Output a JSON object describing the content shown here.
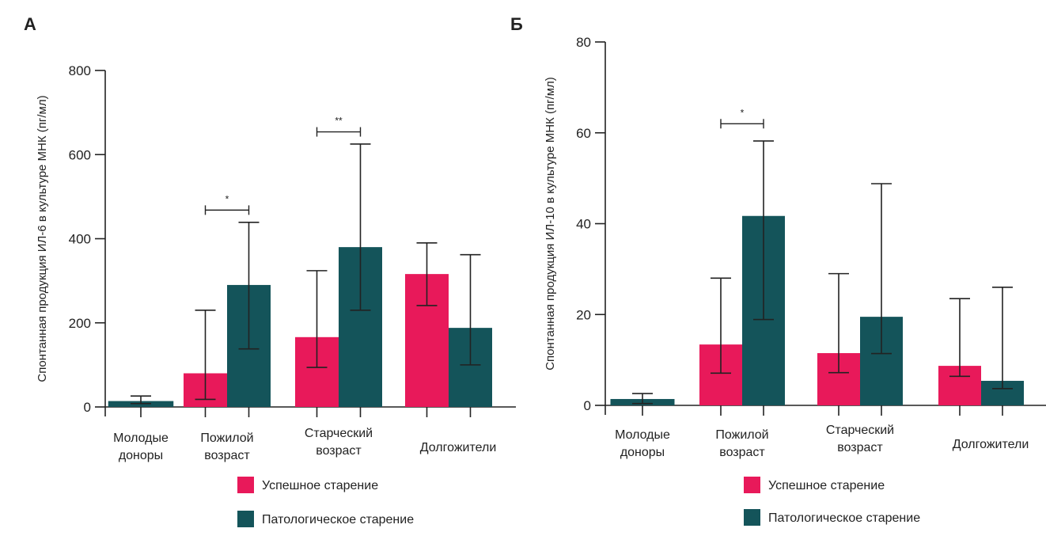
{
  "colors": {
    "successful": "#E8195A",
    "pathological": "#14545A",
    "axis": "#222222"
  },
  "legend": {
    "items": [
      {
        "label": "Успешное старение",
        "color": "#E8195A"
      },
      {
        "label": "Патологическое старение",
        "color": "#14545A"
      }
    ]
  },
  "chart_data": [
    {
      "type": "bar",
      "panel": "А",
      "title": "",
      "xlabel": "",
      "ylabel": "Спонтанная продукция ИЛ-6 в культуре МНК (пг/мл)",
      "ylim": [
        0,
        800
      ],
      "yticks": [
        0,
        200,
        400,
        600,
        800
      ],
      "categories": [
        [
          "Молодые",
          "доноры"
        ],
        [
          "Пожилой",
          "возраст"
        ],
        [
          "Старческий",
          "возраст"
        ],
        [
          "Долгожители"
        ]
      ],
      "series": [
        {
          "name": "Успешное старение",
          "values": [
            null,
            80,
            166,
            316
          ],
          "err_low": [
            null,
            18,
            94,
            241
          ],
          "err_high": [
            null,
            230,
            324,
            390
          ]
        },
        {
          "name": "Патологическое старение",
          "values": [
            14,
            290,
            380,
            188
          ],
          "err_low": [
            8,
            138,
            230,
            100
          ],
          "err_high": [
            26,
            439,
            625,
            362
          ]
        }
      ],
      "single_bar_group": 0,
      "significance": [
        {
          "group": 1,
          "label": "*",
          "y": 468
        },
        {
          "group": 2,
          "label": "**",
          "y": 654
        }
      ],
      "legend_position": "bottom"
    },
    {
      "type": "bar",
      "panel": "Б",
      "title": "",
      "xlabel": "",
      "ylabel": "Спонтанная продукция ИЛ-10 в культуре МНК (пг/мл)",
      "ylim": [
        0,
        80
      ],
      "yticks": [
        0,
        20,
        40,
        60,
        80
      ],
      "categories": [
        [
          "Молодые",
          "доноры"
        ],
        [
          "Пожилой",
          "возраст"
        ],
        [
          "Старческий",
          "возраст"
        ],
        [
          "Долгожители"
        ]
      ],
      "series": [
        {
          "name": "Успешное старение",
          "values": [
            null,
            13.4,
            11.5,
            8.7
          ],
          "err_low": [
            null,
            7.1,
            7.2,
            6.4
          ],
          "err_high": [
            null,
            28,
            29,
            23.5
          ]
        },
        {
          "name": "Патологическое старение",
          "values": [
            1.4,
            41.7,
            19.5,
            5.4
          ],
          "err_low": [
            0.4,
            18.9,
            11.4,
            3.7
          ],
          "err_high": [
            2.6,
            58.2,
            48.8,
            26
          ]
        }
      ],
      "single_bar_group": 0,
      "significance": [
        {
          "group": 1,
          "label": "*",
          "y": 62
        }
      ],
      "legend_position": "bottom"
    }
  ]
}
